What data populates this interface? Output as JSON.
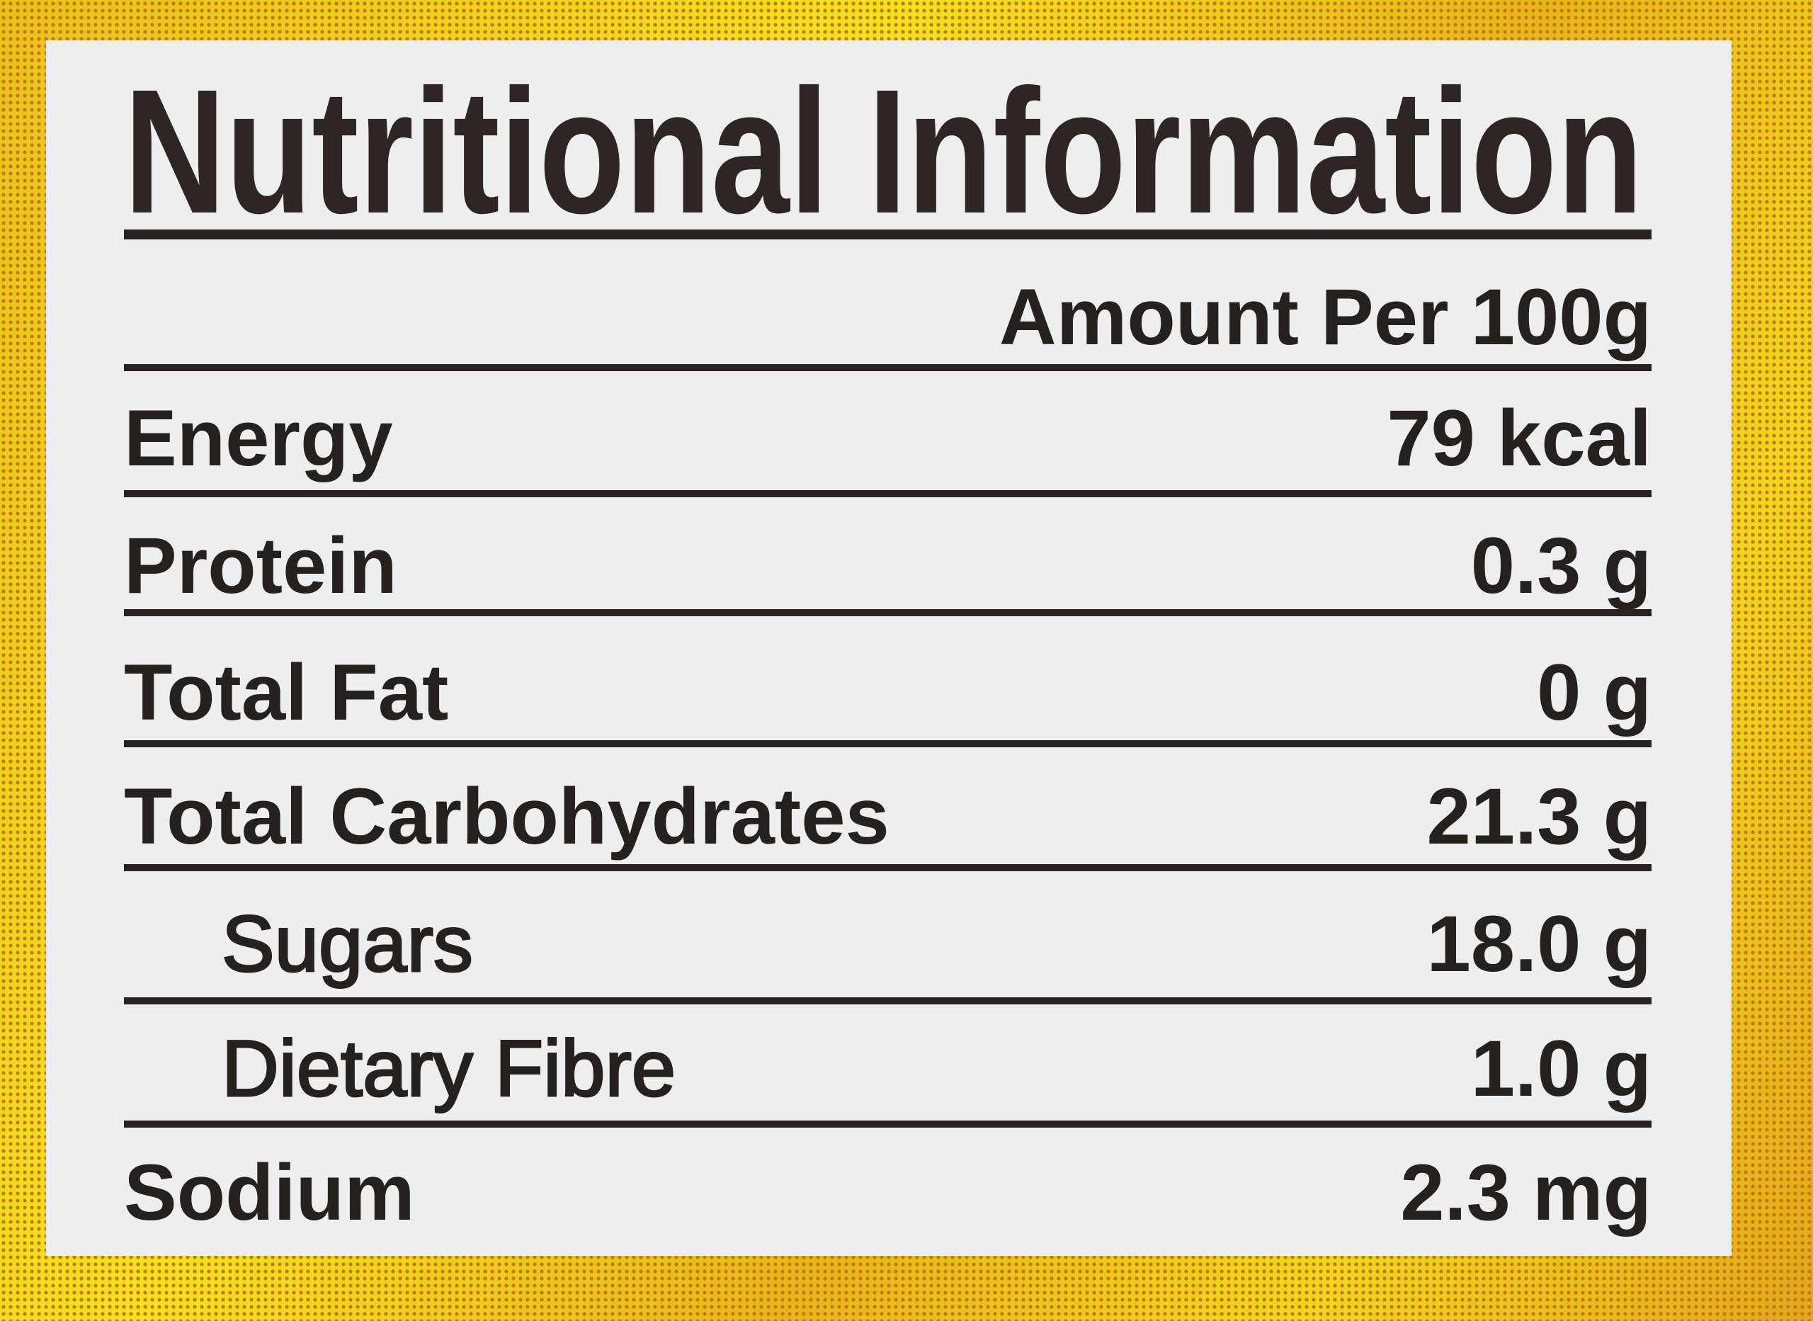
{
  "title": "Nutritional Information",
  "serving_header": "Amount Per 100g",
  "rows": [
    {
      "label": "Energy",
      "value": "79 kcal",
      "indent": false
    },
    {
      "label": "Protein",
      "value": "0.3 g",
      "indent": false
    },
    {
      "label": "Total Fat",
      "value": "0 g",
      "indent": false
    },
    {
      "label": "Total Carbohydrates",
      "value": "21.3 g",
      "indent": false
    },
    {
      "label": "Sugars",
      "value": "18.0 g",
      "indent": true
    },
    {
      "label": "Dietary Fibre",
      "value": "1.0 g",
      "indent": true
    },
    {
      "label": "Sodium",
      "value": "2.3 mg",
      "indent": false
    }
  ],
  "colors": {
    "background": "#ecd11c",
    "panel": "#eceef0",
    "ink": "#26201e"
  }
}
